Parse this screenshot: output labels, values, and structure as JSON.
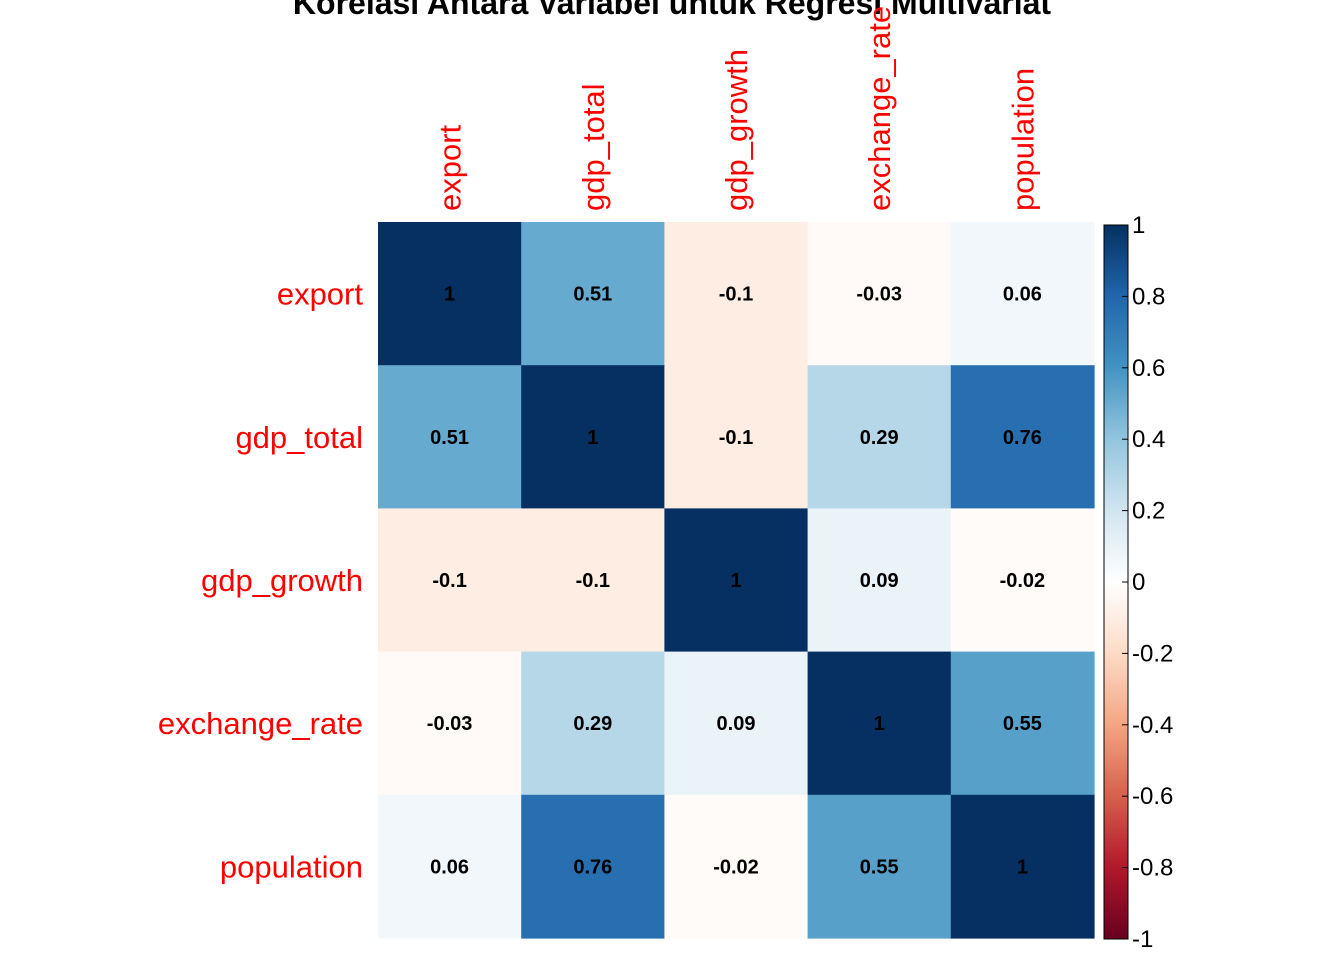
{
  "chart_data": {
    "type": "heatmap",
    "title": "Korelasi Antara Variabel untuk Regresi Multivariat",
    "variables": [
      "export",
      "gdp_total",
      "gdp_growth",
      "exchange_rate",
      "population"
    ],
    "matrix": [
      [
        1,
        0.51,
        -0.1,
        -0.03,
        0.06
      ],
      [
        0.51,
        1,
        -0.1,
        0.29,
        0.76
      ],
      [
        -0.1,
        -0.1,
        1,
        0.09,
        -0.02
      ],
      [
        -0.03,
        0.29,
        0.09,
        1,
        0.55
      ],
      [
        0.06,
        0.76,
        -0.02,
        0.55,
        1
      ]
    ],
    "value_labels": [
      [
        "1",
        "0.51",
        "-0.1",
        "-0.03",
        "0.06"
      ],
      [
        "0.51",
        "1",
        "-0.1",
        "0.29",
        "0.76"
      ],
      [
        "-0.1",
        "-0.1",
        "1",
        "0.09",
        "-0.02"
      ],
      [
        "-0.03",
        "0.29",
        "0.09",
        "1",
        "0.55"
      ],
      [
        "0.06",
        "0.76",
        "-0.02",
        "0.55",
        "1"
      ]
    ],
    "colorbar": {
      "range": [
        -1,
        1
      ],
      "ticks": [
        "-1",
        "-0.8",
        "-0.6",
        "-0.4",
        "-0.2",
        "0",
        "0.2",
        "0.4",
        "0.6",
        "0.8",
        "1"
      ],
      "tick_values": [
        -1,
        -0.8,
        -0.6,
        -0.4,
        -0.2,
        0,
        0.2,
        0.4,
        0.6,
        0.8,
        1
      ],
      "palette": [
        "#67001F",
        "#B2182B",
        "#D6604D",
        "#F4A582",
        "#FDDBC7",
        "#FFFFFF",
        "#D1E5F0",
        "#92C5DE",
        "#4393C3",
        "#2166AC",
        "#053061"
      ]
    },
    "label_color": "#FF0000"
  }
}
